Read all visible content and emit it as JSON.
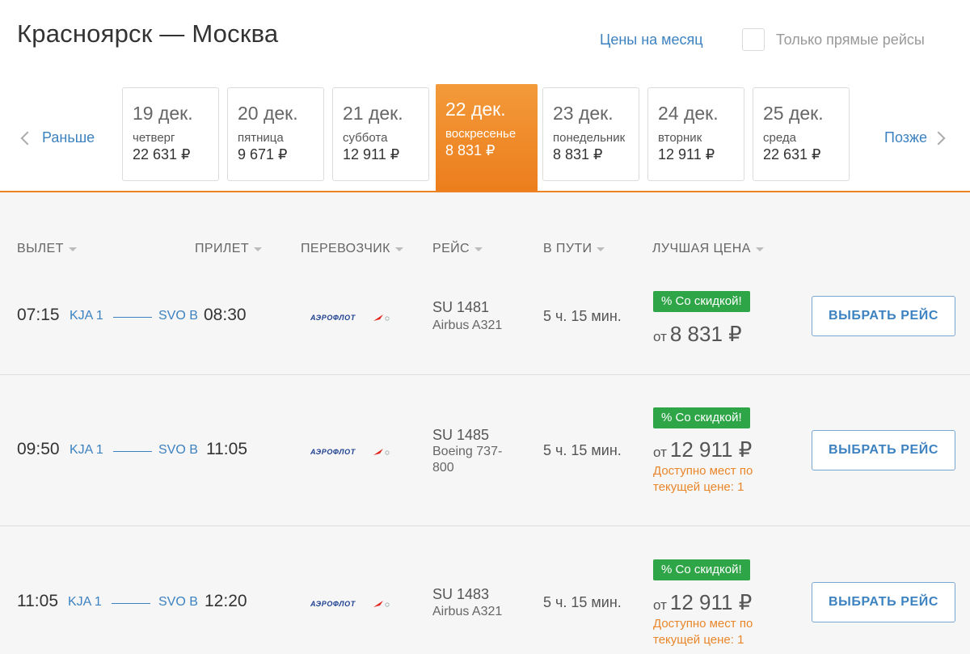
{
  "header": {
    "title": "Красноярск — Москва",
    "month_prices_link": "Цены на месяц",
    "direct_only_label": "Только прямые рейсы",
    "direct_only_checked": false
  },
  "date_nav": {
    "prev_label": "Раньше",
    "next_label": "Позже",
    "dates": [
      {
        "date": "19 дек.",
        "weekday": "четверг",
        "price": "22 631 ₽",
        "active": false
      },
      {
        "date": "20 дек.",
        "weekday": "пятница",
        "price": "9 671 ₽",
        "active": false
      },
      {
        "date": "21 дек.",
        "weekday": "суббота",
        "price": "12 911 ₽",
        "active": false
      },
      {
        "date": "22 дек.",
        "weekday": "воскресенье",
        "price": "8 831 ₽",
        "active": true
      },
      {
        "date": "23 дек.",
        "weekday": "понедельник",
        "price": "8 831 ₽",
        "active": false
      },
      {
        "date": "24 дек.",
        "weekday": "вторник",
        "price": "12 911 ₽",
        "active": false
      },
      {
        "date": "25 дек.",
        "weekday": "среда",
        "price": "22 631 ₽",
        "active": false
      }
    ]
  },
  "columns": {
    "departure": "ВЫЛЕТ",
    "arrival": "ПРИЛЕТ",
    "carrier": "ПЕРЕВОЗЧИК",
    "flight": "РЕЙС",
    "duration": "В ПУТИ",
    "best_price": "ЛУЧШАЯ ЦЕНА"
  },
  "flights": [
    {
      "dep_time": "07:15",
      "dep_airport": "KJA 1",
      "arr_airport": "SVO B",
      "arr_time": "08:30",
      "carrier_logo": "aeroflot-logo",
      "flight_no": "SU 1481",
      "aircraft": "Airbus A321",
      "duration": "5 ч. 15 мин.",
      "badge": "% Со скидкой!",
      "price_prefix": "от",
      "price": "8 831 ₽",
      "seats_note": "",
      "button": "ВЫБРАТЬ РЕЙС"
    },
    {
      "dep_time": "09:50",
      "dep_airport": "KJA 1",
      "arr_airport": "SVO B",
      "arr_time": "11:05",
      "carrier_logo": "aeroflot-logo",
      "flight_no": "SU 1485",
      "aircraft": "Boeing 737-800",
      "duration": "5 ч. 15 мин.",
      "badge": "% Со скидкой!",
      "price_prefix": "от",
      "price": "12 911 ₽",
      "seats_note": "Доступно мест по текущей цене: 1",
      "button": "ВЫБРАТЬ РЕЙС"
    },
    {
      "dep_time": "11:05",
      "dep_airport": "KJA 1",
      "arr_airport": "SVO B",
      "arr_time": "12:20",
      "carrier_logo": "aeroflot-logo",
      "flight_no": "SU 1483",
      "aircraft": "Airbus A321",
      "duration": "5 ч. 15 мин.",
      "badge": "% Со скидкой!",
      "price_prefix": "от",
      "price": "12 911 ₽",
      "seats_note": "Доступно мест по текущей цене: 1",
      "button": "ВЫБРАТЬ РЕЙС"
    }
  ],
  "colors": {
    "accent_orange": "#ee8221",
    "link_blue": "#3d82c0",
    "badge_green": "#2ea547",
    "seats_orange": "#e9862a"
  }
}
